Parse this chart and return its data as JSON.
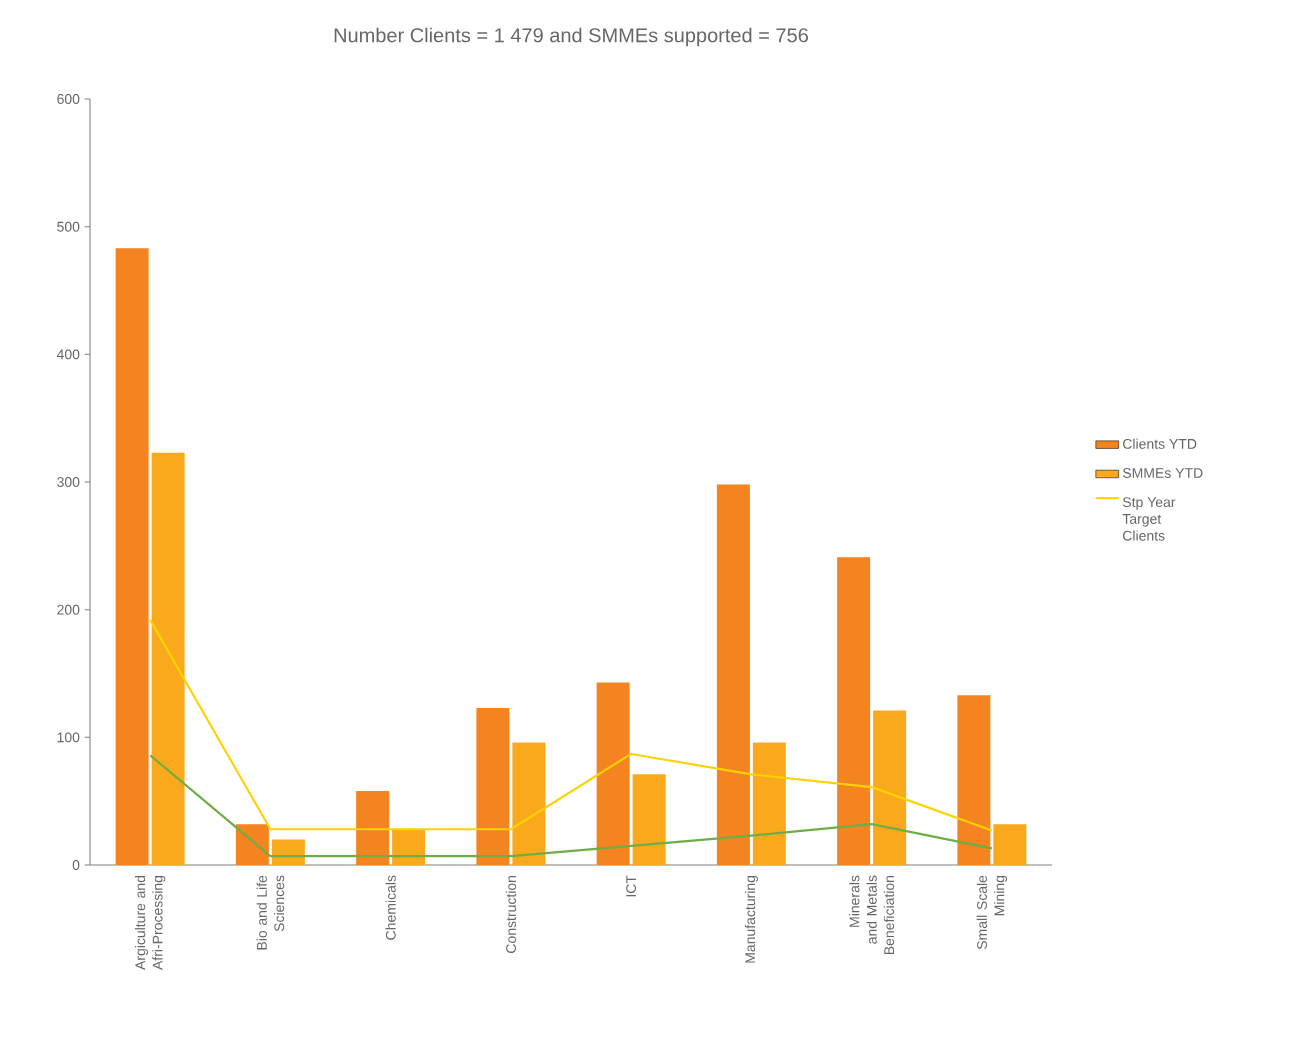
{
  "chart_data": {
    "type": "bar",
    "title": "Number Clients = 1 479 and SMMEs supported = 756",
    "categories": [
      "Argiculture and Afri-Processing",
      "Bio and Life Sciences",
      "Chemicals",
      "Construction",
      "ICT",
      "Manufacturing",
      "Minerals and Metals Beneficiation",
      "Small Scale Mining"
    ],
    "series": [
      {
        "name": "Clients YTD",
        "color": "#f4841f",
        "values": [
          483,
          32,
          58,
          123,
          143,
          298,
          241,
          133
        ]
      },
      {
        "name": "SMMEs YTD",
        "color": "#f9a91b",
        "values": [
          323,
          20,
          28,
          96,
          71,
          96,
          121,
          32
        ]
      },
      {
        "name": "Stp Year Target Clients",
        "type": "line",
        "color": "#ffd200",
        "values": [
          192,
          28,
          28,
          28,
          87,
          71,
          61,
          27
        ]
      },
      {
        "type": "line",
        "color": "#6fad46",
        "values": [
          86,
          7,
          7,
          7,
          15,
          23,
          32,
          13
        ]
      }
    ],
    "ylim": [
      0,
      600
    ],
    "yticks": [
      0,
      100,
      200,
      300,
      400,
      500,
      600
    ],
    "legend": "right"
  }
}
